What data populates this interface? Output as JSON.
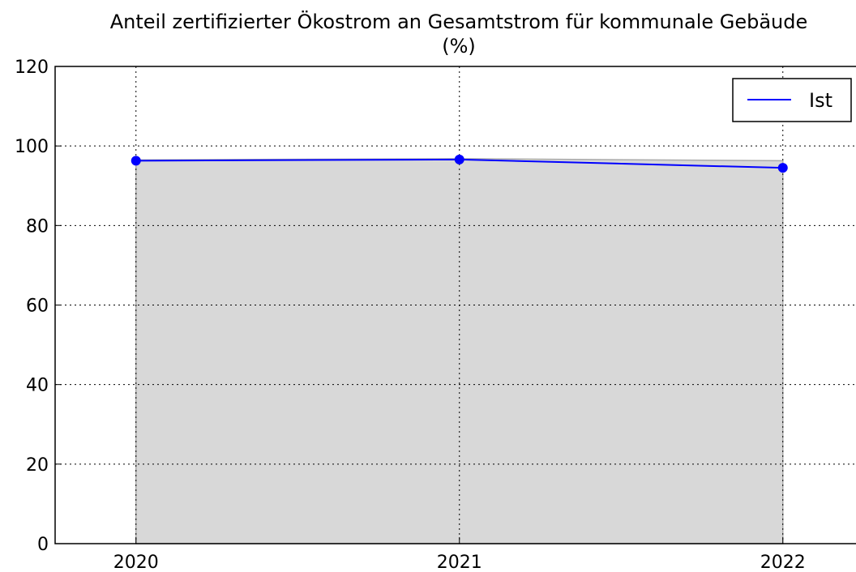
{
  "chart_data": {
    "type": "line",
    "title": "Anteil zertifizierter Ökostrom an Gesamtstrom für kommunale Gebäude (%)",
    "x": [
      2020,
      2021,
      2022
    ],
    "series": [
      {
        "name": "Ist",
        "color": "#0000ff",
        "values": [
          96.3,
          96.6,
          94.5
        ]
      },
      {
        "color": "#d8d8d8",
        "fill": true,
        "values": [
          96.5,
          96.8,
          96.3
        ]
      }
    ],
    "xlim": [
      2019.75,
      2022.25
    ],
    "xticks": [
      2020,
      2021,
      2022
    ],
    "ylim": [
      0,
      120
    ],
    "yticks": [
      0,
      20,
      40,
      60,
      80,
      100,
      120
    ],
    "grid": true,
    "legend": "upper right"
  }
}
